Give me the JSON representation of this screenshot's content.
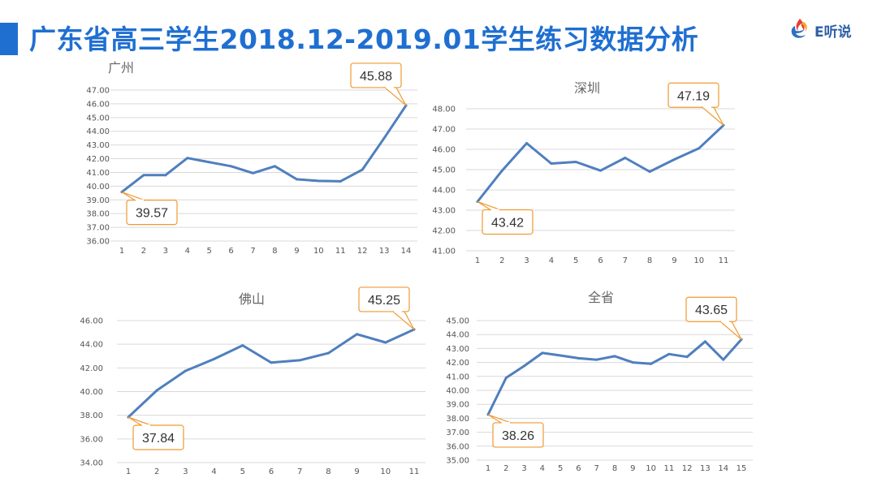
{
  "page_title": "广东省高三学生2018.12-2019.01学生练习数据分析",
  "logo": {
    "text": "E听说",
    "icon": "e-flame-logo-icon"
  },
  "colors": {
    "title": "#1f6fd1",
    "line": "#4f7fbe",
    "callout_border": "#ef9a32",
    "grid": "#d9d9d9"
  },
  "chart_data": [
    {
      "type": "line",
      "title": "广州",
      "categories": [
        "1",
        "2",
        "3",
        "4",
        "5",
        "6",
        "7",
        "8",
        "9",
        "10",
        "11",
        "12",
        "13",
        "14"
      ],
      "values": [
        39.57,
        40.8,
        40.8,
        42.05,
        41.75,
        41.45,
        40.95,
        41.45,
        40.5,
        40.38,
        40.35,
        41.2,
        43.5,
        45.88
      ],
      "ylim": [
        36,
        47
      ],
      "ytick_step": 1,
      "ytick_labels": [
        "36.00",
        "37.00",
        "38.00",
        "39.00",
        "40.00",
        "41.00",
        "42.00",
        "43.00",
        "44.00",
        "45.00",
        "46.00",
        "47.00"
      ],
      "grid": true,
      "callouts": [
        {
          "index": 0,
          "label": "39.57",
          "position": "below-right"
        },
        {
          "index": 13,
          "label": "45.88",
          "position": "above-left"
        }
      ]
    },
    {
      "type": "line",
      "title": "深圳",
      "categories": [
        "1",
        "2",
        "3",
        "4",
        "5",
        "6",
        "7",
        "8",
        "9",
        "10",
        "11"
      ],
      "values": [
        43.42,
        44.95,
        46.3,
        45.3,
        45.38,
        44.95,
        45.58,
        44.9,
        45.5,
        46.05,
        47.19
      ],
      "ylim": [
        41,
        48
      ],
      "ytick_step": 1,
      "ytick_labels": [
        "41.00",
        "42.00",
        "43.00",
        "44.00",
        "45.00",
        "46.00",
        "47.00",
        "48.00"
      ],
      "grid": true,
      "callouts": [
        {
          "index": 0,
          "label": "43.42",
          "position": "below-right"
        },
        {
          "index": 10,
          "label": "47.19",
          "position": "above-left"
        }
      ]
    },
    {
      "type": "line",
      "title": "佛山",
      "categories": [
        "1",
        "2",
        "3",
        "4",
        "5",
        "6",
        "7",
        "8",
        "9",
        "10",
        "11"
      ],
      "values": [
        37.84,
        40.1,
        41.75,
        42.75,
        43.9,
        42.45,
        42.65,
        43.25,
        44.85,
        44.15,
        45.25
      ],
      "ylim": [
        34,
        46
      ],
      "ytick_step": 2,
      "ytick_labels": [
        "34.00",
        "36.00",
        "38.00",
        "40.00",
        "42.00",
        "44.00",
        "46.00"
      ],
      "grid": true,
      "callouts": [
        {
          "index": 0,
          "label": "37.84",
          "position": "below-right"
        },
        {
          "index": 10,
          "label": "45.25",
          "position": "above-left"
        }
      ]
    },
    {
      "type": "line",
      "title": "全省",
      "categories": [
        "1",
        "2",
        "3",
        "4",
        "5",
        "6",
        "7",
        "8",
        "9",
        "10",
        "11",
        "12",
        "13",
        "14",
        "15"
      ],
      "values": [
        38.26,
        40.9,
        41.75,
        42.68,
        42.5,
        42.3,
        42.2,
        42.45,
        42.0,
        41.9,
        42.6,
        42.4,
        43.5,
        42.2,
        43.65
      ],
      "ylim": [
        35,
        45
      ],
      "ytick_step": 1,
      "ytick_labels": [
        "35.00",
        "36.00",
        "37.00",
        "38.00",
        "39.00",
        "40.00",
        "41.00",
        "42.00",
        "43.00",
        "44.00",
        "45.00"
      ],
      "grid": true,
      "callouts": [
        {
          "index": 0,
          "label": "38.26",
          "position": "below-right"
        },
        {
          "index": 14,
          "label": "43.65",
          "position": "above-left"
        }
      ]
    }
  ]
}
